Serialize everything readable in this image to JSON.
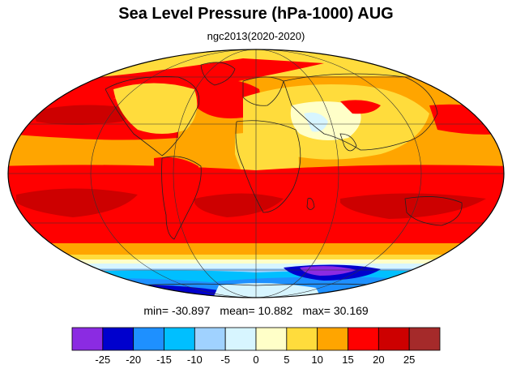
{
  "title": "Sea Level Pressure (hPa-1000) AUG",
  "subtitle": "ngc2013(2020-2020)",
  "stats": {
    "min_label": "min=",
    "min_value": "-30.897",
    "mean_label": "mean=",
    "mean_value": "10.882",
    "max_label": "max=",
    "max_value": "30.169"
  },
  "colorbar": {
    "colors": [
      "#8b2be2",
      "#0000cd",
      "#1e90ff",
      "#00bfff",
      "#a0d2ff",
      "#d7f5ff",
      "#ffffc8",
      "#ffdc3c",
      "#ffa500",
      "#ff0000",
      "#cd0000",
      "#a52a2a"
    ],
    "tick_labels": [
      "-25",
      "-20",
      "-15",
      "-10",
      "-5",
      "0",
      "5",
      "10",
      "15",
      "20",
      "25"
    ]
  },
  "map": {
    "projection": "Mollweide",
    "colors": {
      "ocean_mid": "#ffa500",
      "high": "#ff0000",
      "very_high": "#cd0000",
      "warm": "#ffdc3c",
      "neutral": "#ffffc8",
      "low1": "#d7f5ff",
      "low2": "#a0d2ff",
      "low3": "#00bfff",
      "low4": "#1e90ff",
      "low5": "#0000cd",
      "lowest": "#8b2be2"
    }
  }
}
